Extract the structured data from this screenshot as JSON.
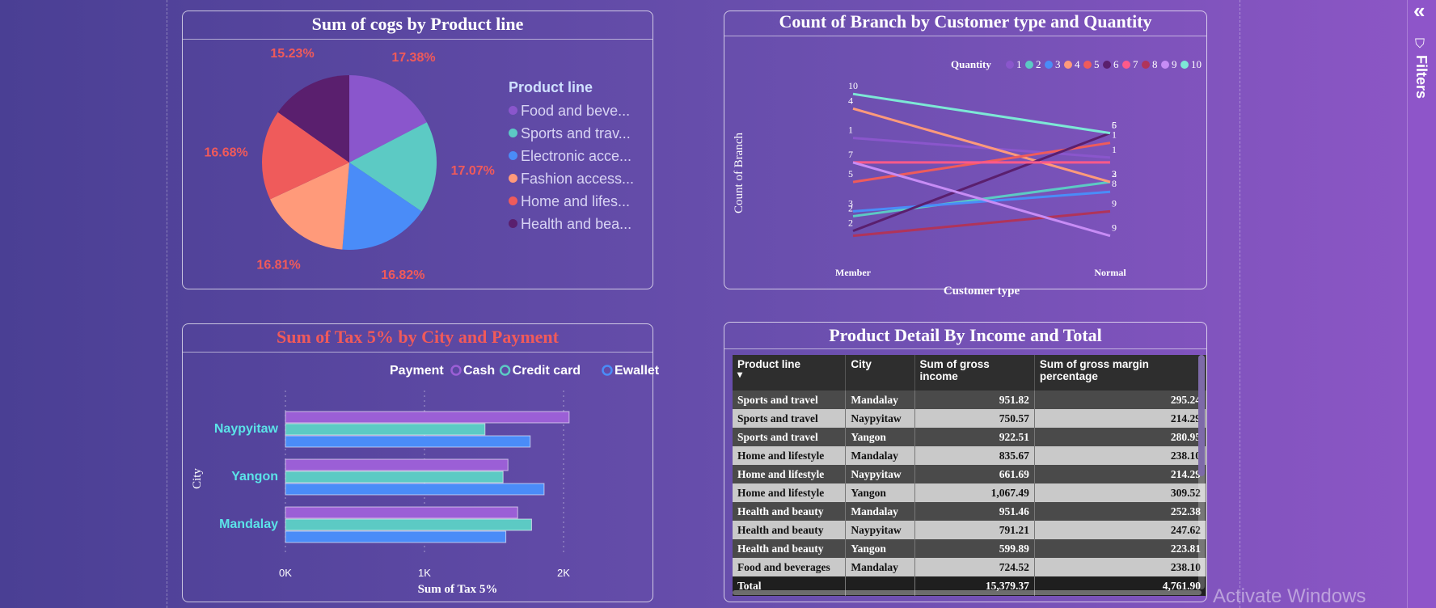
{
  "pie_card": {
    "title": "Sum of cogs by Product line",
    "legend_title": "Product line",
    "legend_items": [
      "Food and beve...",
      "Sports and trav...",
      "Electronic acce...",
      "Fashion access...",
      "Home and lifes...",
      "Health and bea..."
    ]
  },
  "line_card": {
    "title": "Count of Branch by Customer type and Quantity",
    "legend_title": "Quantity"
  },
  "bar_card": {
    "title": "Sum of Tax 5% by City and Payment",
    "legend_title": "Payment"
  },
  "table_card": {
    "title": "Product Detail By Income and Total",
    "columns": [
      "Product line",
      "City",
      "Sum of gross income",
      "Sum of gross margin percentage"
    ],
    "rows": [
      [
        "Sports and travel",
        "Mandalay",
        "951.82",
        "295.24"
      ],
      [
        "Sports and travel",
        "Naypyitaw",
        "750.57",
        "214.29"
      ],
      [
        "Sports and travel",
        "Yangon",
        "922.51",
        "280.95"
      ],
      [
        "Home and lifestyle",
        "Mandalay",
        "835.67",
        "238.10"
      ],
      [
        "Home and lifestyle",
        "Naypyitaw",
        "661.69",
        "214.29"
      ],
      [
        "Home and lifestyle",
        "Yangon",
        "1,067.49",
        "309.52"
      ],
      [
        "Health and beauty",
        "Mandalay",
        "951.46",
        "252.38"
      ],
      [
        "Health and beauty",
        "Naypyitaw",
        "791.21",
        "247.62"
      ],
      [
        "Health and beauty",
        "Yangon",
        "599.89",
        "223.81"
      ],
      [
        "Food and beverages",
        "Mandalay",
        "724.52",
        "238.10"
      ]
    ],
    "total": [
      "Total",
      "",
      "15,379.37",
      "4,761.90"
    ]
  },
  "filters_panel": {
    "label": "Filters",
    "collapse_glyph": "«",
    "filter_glyph": "⛉"
  },
  "watermark": "Activate Windows",
  "colors": {
    "food": "#8a56cc",
    "sports": "#5ccac4",
    "electronic": "#4a8cf8",
    "fashion": "#ff9a7a",
    "home": "#ef5b5b",
    "health": "#5a1f6e",
    "accent_red": "#f05a5a",
    "accent_cyan": "#5be3e8"
  },
  "chart_data": [
    {
      "type": "pie",
      "title": "Sum of cogs by Product line",
      "legend_title": "Product line",
      "slices": [
        {
          "label": "Food and beve...",
          "percent": 17.38,
          "label_text": "17.38%",
          "color": "#8a56cc"
        },
        {
          "label": "Sports and trav...",
          "percent": 17.07,
          "label_text": "17.07%",
          "color": "#5ccac4"
        },
        {
          "label": "Electronic acce...",
          "percent": 16.82,
          "label_text": "16.82%",
          "color": "#4a8cf8"
        },
        {
          "label": "Fashion access...",
          "percent": 16.81,
          "label_text": "16.81%",
          "color": "#ff9a7a"
        },
        {
          "label": "Home and lifes...",
          "percent": 16.68,
          "label_text": "16.68%",
          "color": "#ef5b5b"
        },
        {
          "label": "Health and bea...",
          "percent": 15.23,
          "label_text": "15.23%",
          "color": "#5a1f6e"
        }
      ]
    },
    {
      "type": "line",
      "title": "Count of Branch by Customer type and Quantity",
      "xlabel": "Customer type",
      "ylabel": "Count of Branch",
      "legend_title": "Quantity",
      "categories": [
        "Member",
        "Normal"
      ],
      "series": [
        {
          "name": "1",
          "color": "#8a56cc",
          "values": [
            47,
            43
          ],
          "labels": [
            "1",
            "1"
          ]
        },
        {
          "name": "2",
          "color": "#5ccac4",
          "values": [
            31,
            38
          ],
          "labels": [
            "2",
            "3"
          ]
        },
        {
          "name": "3",
          "color": "#4a8cf8",
          "values": [
            32,
            36
          ],
          "labels": [
            "3",
            "8"
          ]
        },
        {
          "name": "4",
          "color": "#ff9a7a",
          "values": [
            53,
            38
          ],
          "labels": [
            "4",
            "2"
          ]
        },
        {
          "name": "5",
          "color": "#ef5b5b",
          "values": [
            38,
            46
          ],
          "labels": [
            "5",
            "1"
          ]
        },
        {
          "name": "6",
          "color": "#5a1f6e",
          "values": [
            28,
            48
          ],
          "labels": [
            "2",
            "5"
          ]
        },
        {
          "name": "7",
          "color": "#ff5a8a",
          "values": [
            42,
            42
          ],
          "labels": [
            "7",
            ""
          ]
        },
        {
          "name": "8",
          "color": "#b0345a",
          "values": [
            27,
            32
          ],
          "labels": [
            "",
            "9"
          ]
        },
        {
          "name": "9",
          "color": "#c78cf5",
          "values": [
            42,
            27
          ],
          "labels": [
            "",
            "9"
          ]
        },
        {
          "name": "10",
          "color": "#7de8d6",
          "values": [
            56,
            48
          ],
          "labels": [
            "10",
            "6"
          ]
        }
      ]
    },
    {
      "type": "bar",
      "orientation": "horizontal",
      "title": "Sum of Tax 5% by City and Payment",
      "xlabel": "Sum of Tax 5%",
      "ylabel": "City",
      "legend_title": "Payment",
      "categories": [
        "Naypyitaw",
        "Yangon",
        "Mandalay"
      ],
      "xlim": [
        0,
        2000
      ],
      "ticks": [
        {
          "value": 0,
          "label": "0K"
        },
        {
          "value": 1000,
          "label": "1K"
        },
        {
          "value": 2000,
          "label": "2K"
        }
      ],
      "series": [
        {
          "name": "Cash",
          "color": "#9b5fd6",
          "values": [
            2040,
            1600,
            1670
          ]
        },
        {
          "name": "Credit card",
          "color": "#5ccac4",
          "values": [
            1435,
            1565,
            1770
          ]
        },
        {
          "name": "Ewallet",
          "color": "#4a8cf8",
          "values": [
            1760,
            1860,
            1585
          ]
        }
      ]
    }
  ]
}
